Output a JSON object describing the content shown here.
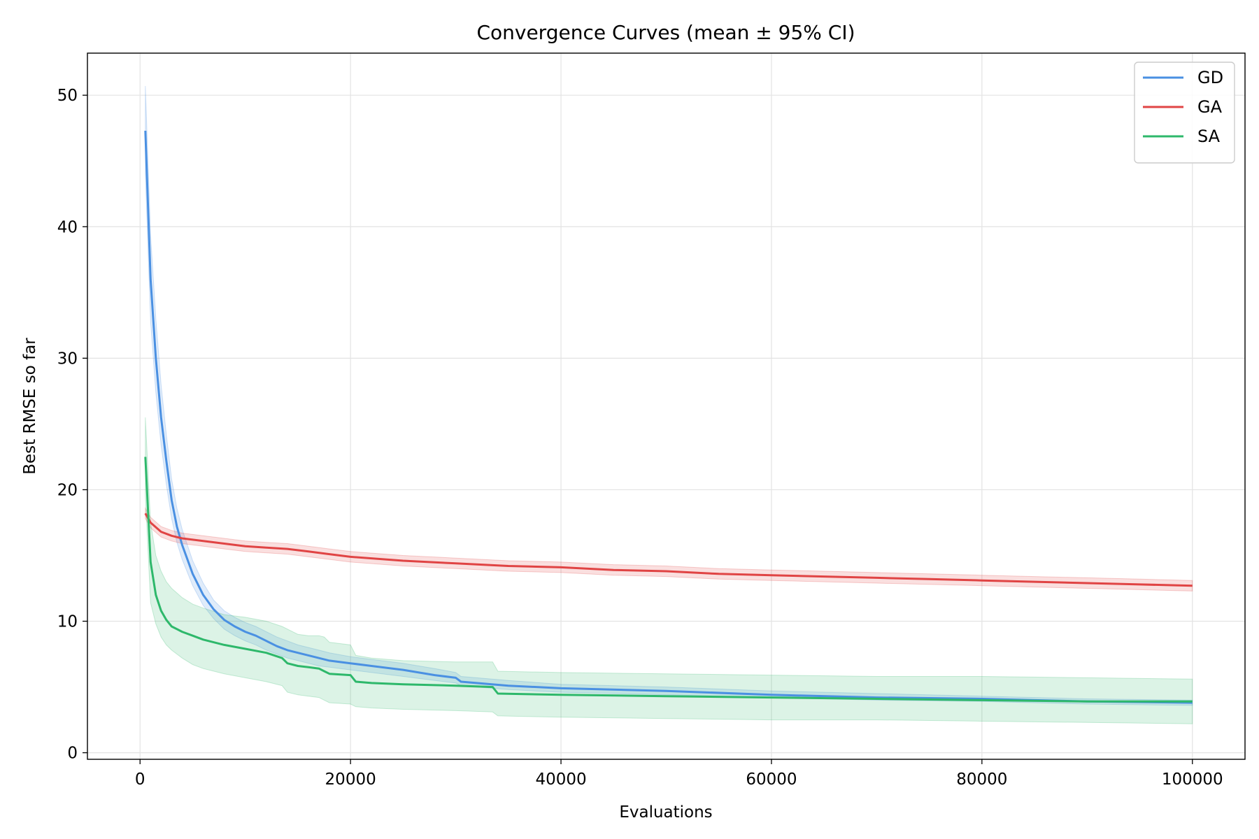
{
  "chart_data": {
    "type": "line",
    "title": "Convergence Curves (mean ± 95% CI)",
    "xlabel": "Evaluations",
    "ylabel": "Best RMSE so far",
    "xlim": [
      -5000,
      105000
    ],
    "ylim": [
      -0.5,
      53.2
    ],
    "xticks": [
      0,
      20000,
      40000,
      60000,
      80000,
      100000
    ],
    "yticks": [
      0,
      10,
      20,
      30,
      40,
      50
    ],
    "grid": true,
    "legend_position": "top-right",
    "series": [
      {
        "name": "GD",
        "color": "#4a90e2",
        "x": [
          500,
          1000,
          1500,
          2000,
          2500,
          3000,
          3500,
          4000,
          5000,
          6000,
          7000,
          8000,
          9000,
          10000,
          11000,
          12000,
          13000,
          14000,
          15000,
          16000,
          17000,
          18000,
          20000,
          22000,
          25000,
          28000,
          30000,
          30500,
          35000,
          40000,
          50000,
          60000,
          70000,
          80000,
          90000,
          100000
        ],
        "y": [
          47.3,
          36.0,
          30.0,
          25.5,
          22.2,
          19.2,
          17.2,
          15.8,
          13.6,
          12.0,
          10.9,
          10.1,
          9.6,
          9.2,
          8.9,
          8.5,
          8.1,
          7.8,
          7.6,
          7.4,
          7.2,
          7.0,
          6.8,
          6.6,
          6.3,
          5.9,
          5.7,
          5.4,
          5.1,
          4.9,
          4.7,
          4.4,
          4.2,
          4.1,
          3.9,
          3.8
        ],
        "ci_low": [
          44.0,
          32.8,
          27.4,
          23.4,
          20.4,
          17.8,
          16.0,
          14.7,
          12.7,
          11.2,
          10.2,
          9.4,
          8.9,
          8.5,
          8.2,
          7.8,
          7.5,
          7.2,
          7.0,
          6.8,
          6.6,
          6.5,
          6.3,
          6.1,
          5.8,
          5.5,
          5.3,
          5.1,
          4.8,
          4.6,
          4.4,
          4.2,
          4.0,
          3.9,
          3.7,
          3.6
        ],
        "ci_high": [
          50.7,
          39.4,
          33.0,
          28.0,
          24.2,
          20.8,
          18.6,
          17.0,
          14.6,
          12.9,
          11.6,
          10.8,
          10.3,
          9.9,
          9.6,
          9.2,
          8.8,
          8.5,
          8.2,
          8.0,
          7.8,
          7.6,
          7.3,
          7.1,
          6.8,
          6.4,
          6.1,
          5.8,
          5.5,
          5.2,
          5.0,
          4.7,
          4.5,
          4.3,
          4.1,
          4.0
        ]
      },
      {
        "name": "GA",
        "color": "#e04444",
        "x": [
          500,
          1000,
          2000,
          3000,
          4000,
          5000,
          6000,
          8000,
          10000,
          12000,
          14000,
          16000,
          18000,
          20000,
          25000,
          30000,
          35000,
          40000,
          45000,
          50000,
          55000,
          60000,
          65000,
          70000,
          75000,
          80000,
          85000,
          90000,
          95000,
          100000
        ],
        "y": [
          18.2,
          17.5,
          16.8,
          16.5,
          16.3,
          16.2,
          16.1,
          15.9,
          15.7,
          15.6,
          15.5,
          15.3,
          15.1,
          14.9,
          14.6,
          14.4,
          14.2,
          14.1,
          13.9,
          13.8,
          13.6,
          13.5,
          13.4,
          13.3,
          13.2,
          13.1,
          13.0,
          12.9,
          12.8,
          12.7
        ],
        "ci_low": [
          17.8,
          17.1,
          16.4,
          16.1,
          15.9,
          15.8,
          15.7,
          15.5,
          15.3,
          15.2,
          15.1,
          14.9,
          14.7,
          14.5,
          14.2,
          14.0,
          13.8,
          13.7,
          13.5,
          13.4,
          13.2,
          13.1,
          13.0,
          12.9,
          12.8,
          12.7,
          12.6,
          12.5,
          12.4,
          12.3
        ],
        "ci_high": [
          18.6,
          17.9,
          17.2,
          16.9,
          16.7,
          16.6,
          16.5,
          16.3,
          16.1,
          16.0,
          15.9,
          15.7,
          15.5,
          15.3,
          15.0,
          14.8,
          14.6,
          14.5,
          14.3,
          14.2,
          14.0,
          13.9,
          13.8,
          13.7,
          13.6,
          13.5,
          13.4,
          13.3,
          13.2,
          13.1
        ]
      },
      {
        "name": "SA",
        "color": "#2eb86b",
        "x": [
          500,
          1000,
          1500,
          2000,
          2500,
          3000,
          4000,
          5000,
          6000,
          8000,
          10000,
          12000,
          13500,
          14000,
          15000,
          16000,
          17000,
          17500,
          18000,
          20000,
          20500,
          22000,
          25000,
          30000,
          33500,
          34000,
          40000,
          50000,
          60000,
          70000,
          80000,
          90000,
          100000
        ],
        "y": [
          22.5,
          14.5,
          12.0,
          10.8,
          10.1,
          9.6,
          9.2,
          8.9,
          8.6,
          8.2,
          7.9,
          7.6,
          7.2,
          6.8,
          6.6,
          6.5,
          6.4,
          6.2,
          6.0,
          5.9,
          5.4,
          5.3,
          5.2,
          5.1,
          5.0,
          4.5,
          4.4,
          4.3,
          4.2,
          4.1,
          4.0,
          3.9,
          3.9
        ],
        "ci_low": [
          19.5,
          11.4,
          9.8,
          8.8,
          8.2,
          7.8,
          7.2,
          6.7,
          6.4,
          6.0,
          5.7,
          5.4,
          5.1,
          4.6,
          4.4,
          4.3,
          4.2,
          4.0,
          3.8,
          3.7,
          3.5,
          3.4,
          3.3,
          3.2,
          3.1,
          2.8,
          2.7,
          2.6,
          2.5,
          2.5,
          2.4,
          2.3,
          2.2
        ],
        "ci_high": [
          25.5,
          17.5,
          15.0,
          13.8,
          13.0,
          12.5,
          11.8,
          11.3,
          11.0,
          10.5,
          10.3,
          10.0,
          9.6,
          9.4,
          9.0,
          8.9,
          8.9,
          8.8,
          8.4,
          8.2,
          7.4,
          7.2,
          7.0,
          6.9,
          6.9,
          6.2,
          6.1,
          6.0,
          5.9,
          5.8,
          5.8,
          5.7,
          5.6
        ]
      }
    ]
  }
}
